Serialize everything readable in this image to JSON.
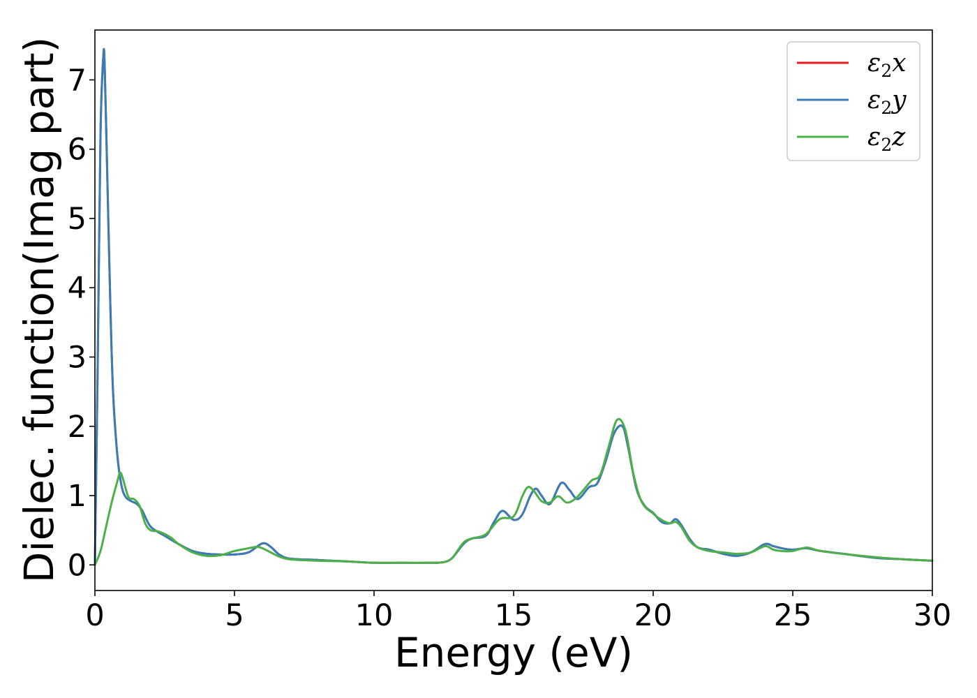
{
  "chart_data": {
    "type": "line",
    "xlabel": "Energy (eV)",
    "ylabel": "Dielec. function(Imag part)",
    "xlim": [
      0,
      30
    ],
    "ylim": [
      -0.37,
      7.72
    ],
    "xticks": [
      0,
      5,
      10,
      15,
      20,
      25,
      30
    ],
    "yticks": [
      0,
      1,
      2,
      3,
      4,
      5,
      6,
      7
    ],
    "grid": false,
    "legend_position": "top-right",
    "series": [
      {
        "name": "x",
        "legend_label": {
          "base": "ε",
          "sub": "2",
          "suffix": "x"
        },
        "color": "#e41a1c",
        "x": [
          0,
          0.1,
          0.2,
          0.3,
          0.35,
          0.45,
          0.55,
          0.65,
          0.8,
          0.95,
          1.1,
          1.3,
          1.5,
          1.7,
          2.0,
          2.5,
          3.0,
          3.5,
          4.0,
          4.5,
          5.0,
          5.5,
          6.0,
          6.3,
          6.6,
          7.0,
          8.0,
          9.0,
          10.0,
          11.0,
          12.0,
          12.5,
          12.8,
          13.2,
          13.5,
          14.0,
          14.3,
          14.6,
          15.0,
          15.3,
          15.6,
          15.8,
          16.0,
          16.3,
          16.7,
          17.0,
          17.3,
          17.7,
          18.0,
          18.3,
          18.6,
          18.9,
          19.1,
          19.4,
          19.7,
          20.0,
          20.3,
          20.6,
          20.8,
          21.0,
          21.3,
          21.6,
          22.0,
          22.5,
          23.0,
          23.5,
          24.0,
          24.3,
          24.6,
          25.0,
          25.5,
          26.0,
          27.0,
          28.0,
          29.0,
          30.0
        ],
        "y": [
          0.0,
          2.9,
          6.2,
          7.33,
          7.2,
          5.5,
          3.8,
          2.5,
          1.6,
          1.15,
          0.98,
          0.92,
          0.88,
          0.78,
          0.55,
          0.42,
          0.3,
          0.2,
          0.16,
          0.15,
          0.15,
          0.18,
          0.31,
          0.26,
          0.15,
          0.09,
          0.07,
          0.05,
          0.03,
          0.03,
          0.03,
          0.04,
          0.1,
          0.3,
          0.38,
          0.42,
          0.62,
          0.78,
          0.65,
          0.72,
          1.0,
          1.1,
          1.0,
          0.88,
          1.18,
          1.08,
          0.95,
          1.12,
          1.18,
          1.5,
          1.9,
          2.0,
          1.7,
          1.1,
          0.85,
          0.75,
          0.62,
          0.6,
          0.66,
          0.58,
          0.38,
          0.25,
          0.22,
          0.16,
          0.13,
          0.18,
          0.3,
          0.27,
          0.24,
          0.22,
          0.24,
          0.2,
          0.15,
          0.1,
          0.08,
          0.06
        ]
      },
      {
        "name": "y",
        "legend_label": {
          "base": "ε",
          "sub": "2",
          "suffix": "y"
        },
        "color": "#377eb8",
        "x": [
          0,
          0.1,
          0.2,
          0.3,
          0.35,
          0.45,
          0.55,
          0.65,
          0.8,
          0.95,
          1.1,
          1.3,
          1.5,
          1.7,
          2.0,
          2.5,
          3.0,
          3.5,
          4.0,
          4.5,
          5.0,
          5.5,
          6.0,
          6.3,
          6.6,
          7.0,
          8.0,
          9.0,
          10.0,
          11.0,
          12.0,
          12.5,
          12.8,
          13.2,
          13.5,
          14.0,
          14.3,
          14.6,
          15.0,
          15.3,
          15.6,
          15.8,
          16.0,
          16.3,
          16.7,
          17.0,
          17.3,
          17.7,
          18.0,
          18.3,
          18.6,
          18.9,
          19.1,
          19.4,
          19.7,
          20.0,
          20.3,
          20.6,
          20.8,
          21.0,
          21.3,
          21.6,
          22.0,
          22.5,
          23.0,
          23.5,
          24.0,
          24.3,
          24.6,
          25.0,
          25.5,
          26.0,
          27.0,
          28.0,
          29.0,
          30.0
        ],
        "y": [
          0.0,
          2.9,
          6.2,
          7.33,
          7.2,
          5.5,
          3.8,
          2.5,
          1.6,
          1.15,
          0.98,
          0.92,
          0.88,
          0.78,
          0.55,
          0.42,
          0.3,
          0.2,
          0.16,
          0.15,
          0.15,
          0.18,
          0.31,
          0.26,
          0.15,
          0.09,
          0.07,
          0.05,
          0.03,
          0.03,
          0.03,
          0.04,
          0.1,
          0.3,
          0.38,
          0.42,
          0.62,
          0.78,
          0.65,
          0.72,
          1.0,
          1.1,
          1.0,
          0.88,
          1.18,
          1.08,
          0.95,
          1.12,
          1.18,
          1.5,
          1.9,
          2.0,
          1.7,
          1.1,
          0.85,
          0.75,
          0.62,
          0.6,
          0.66,
          0.58,
          0.38,
          0.25,
          0.22,
          0.16,
          0.13,
          0.18,
          0.3,
          0.27,
          0.24,
          0.22,
          0.24,
          0.2,
          0.15,
          0.1,
          0.08,
          0.06
        ]
      },
      {
        "name": "z",
        "legend_label": {
          "base": "ε",
          "sub": "2",
          "suffix": "z"
        },
        "color": "#4daf4a",
        "x": [
          0,
          0.2,
          0.4,
          0.6,
          0.8,
          0.9,
          1.0,
          1.2,
          1.4,
          1.6,
          1.8,
          2.0,
          2.3,
          2.7,
          3.0,
          3.5,
          4.0,
          4.5,
          5.0,
          5.5,
          5.8,
          6.0,
          6.3,
          6.6,
          7.0,
          8.0,
          9.0,
          10.0,
          11.0,
          12.0,
          12.5,
          12.8,
          13.2,
          13.5,
          14.0,
          14.5,
          15.0,
          15.3,
          15.5,
          15.7,
          16.0,
          16.3,
          16.6,
          16.9,
          17.2,
          17.5,
          17.8,
          18.1,
          18.4,
          18.7,
          19.0,
          19.3,
          19.6,
          20.0,
          20.3,
          20.6,
          20.8,
          21.0,
          21.3,
          21.6,
          22.0,
          22.5,
          23.0,
          23.5,
          24.0,
          24.3,
          24.6,
          25.0,
          25.5,
          26.0,
          27.0,
          28.0,
          29.0,
          30.0
        ],
        "y": [
          0.0,
          0.2,
          0.55,
          0.9,
          1.2,
          1.33,
          1.25,
          0.98,
          0.95,
          0.85,
          0.6,
          0.5,
          0.48,
          0.4,
          0.3,
          0.18,
          0.13,
          0.14,
          0.2,
          0.24,
          0.26,
          0.24,
          0.18,
          0.12,
          0.08,
          0.06,
          0.05,
          0.03,
          0.03,
          0.03,
          0.04,
          0.1,
          0.32,
          0.38,
          0.44,
          0.66,
          0.7,
          0.98,
          1.12,
          1.08,
          0.92,
          0.9,
          0.99,
          0.9,
          0.95,
          1.08,
          1.22,
          1.3,
          1.7,
          2.09,
          1.95,
          1.3,
          0.9,
          0.74,
          0.65,
          0.6,
          0.62,
          0.55,
          0.35,
          0.25,
          0.2,
          0.18,
          0.16,
          0.18,
          0.27,
          0.22,
          0.2,
          0.2,
          0.25,
          0.2,
          0.15,
          0.11,
          0.08,
          0.06
        ]
      }
    ]
  }
}
